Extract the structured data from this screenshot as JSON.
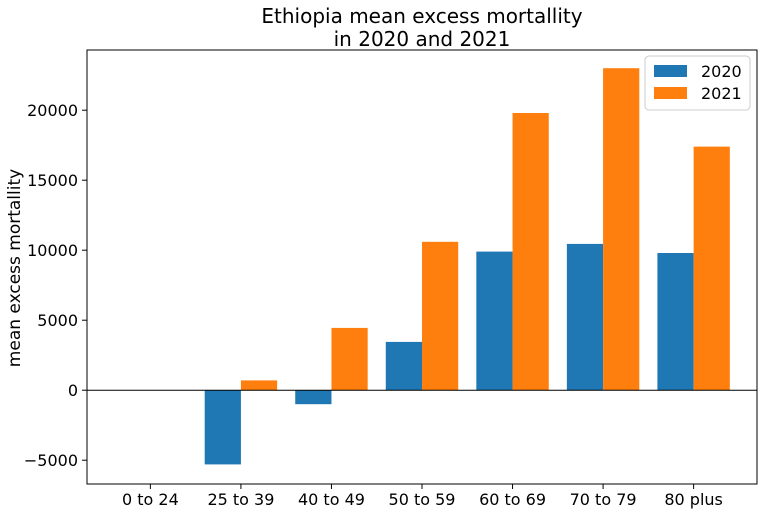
{
  "chart_data": {
    "type": "bar",
    "title_lines": [
      "Ethiopia mean excess mortallity",
      "in 2020 and 2021"
    ],
    "xlabel": "",
    "ylabel": "mean excess mortallity",
    "categories": [
      "0 to 24",
      "25 to 39",
      "40 to 49",
      "50 to 59",
      "60 to 69",
      "70 to 79",
      "80 plus"
    ],
    "series": [
      {
        "name": "2020",
        "color": "#1f77b4",
        "values": [
          0,
          -5300,
          -1000,
          3450,
          9900,
          10450,
          9800
        ]
      },
      {
        "name": "2021",
        "color": "#ff7f0e",
        "values": [
          0,
          700,
          4450,
          10600,
          19800,
          23000,
          17400
        ]
      }
    ],
    "ylim": [
      -6700,
      24300
    ],
    "yticks": [
      -5000,
      0,
      5000,
      10000,
      15000,
      20000
    ],
    "ytick_labels": [
      "−5000",
      "0",
      "5000",
      "10000",
      "15000",
      "20000"
    ],
    "zero_line": true,
    "grid": false,
    "legend": "top-right"
  }
}
